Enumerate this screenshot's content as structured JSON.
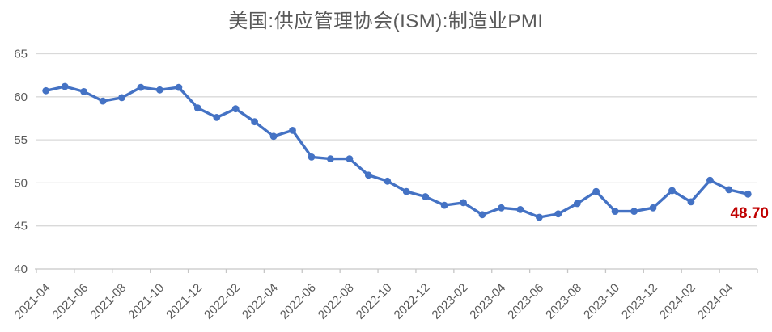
{
  "title": "美国:供应管理协会(ISM):制造业PMI",
  "annotation": {
    "last_value_label": "48.70",
    "color": "#c00000"
  },
  "colors": {
    "line": "#4472c4",
    "marker": "#4472c4",
    "gridline": "#d9d9d9",
    "axis_line": "#c6c6c6",
    "axis_text": "#595959",
    "title_text": "#595959",
    "background": "#ffffff"
  },
  "chart_data": {
    "type": "line",
    "title": "美国:供应管理协会(ISM):制造业PMI",
    "x": [
      "2021-04",
      "2021-05",
      "2021-06",
      "2021-07",
      "2021-08",
      "2021-09",
      "2021-10",
      "2021-11",
      "2021-12",
      "2022-01",
      "2022-02",
      "2022-03",
      "2022-04",
      "2022-05",
      "2022-06",
      "2022-07",
      "2022-08",
      "2022-09",
      "2022-10",
      "2022-11",
      "2022-12",
      "2023-01",
      "2023-02",
      "2023-03",
      "2023-04",
      "2023-05",
      "2023-06",
      "2023-07",
      "2023-08",
      "2023-09",
      "2023-10",
      "2023-11",
      "2023-12",
      "2024-01",
      "2024-02",
      "2024-03",
      "2024-04",
      "2024-05"
    ],
    "values": [
      60.7,
      61.2,
      60.6,
      59.5,
      59.9,
      61.1,
      60.8,
      61.1,
      58.7,
      57.6,
      58.6,
      57.1,
      55.4,
      56.1,
      53.0,
      52.8,
      52.8,
      50.9,
      50.2,
      49.0,
      48.4,
      47.4,
      47.7,
      46.3,
      47.1,
      46.9,
      46.0,
      46.4,
      47.6,
      49.0,
      46.7,
      46.7,
      47.1,
      49.1,
      47.8,
      50.3,
      49.2,
      48.7
    ],
    "xlabel": "",
    "ylabel": "",
    "ylim": [
      40,
      65
    ],
    "y_ticks": [
      40,
      45,
      50,
      55,
      60,
      65
    ],
    "x_tick_step": 2,
    "x_tick_labels": [
      "2021-04",
      "2021-06",
      "2021-08",
      "2021-10",
      "2021-12",
      "2022-02",
      "2022-04",
      "2022-06",
      "2022-08",
      "2022-10",
      "2022-12",
      "2023-02",
      "2023-04",
      "2023-06",
      "2023-08",
      "2023-10",
      "2023-12",
      "2024-02",
      "2024-04"
    ],
    "grid": true,
    "legend": false,
    "marker": "circle",
    "last_point_label": {
      "x": "2024-05",
      "value": 48.7,
      "text": "48.70"
    }
  }
}
